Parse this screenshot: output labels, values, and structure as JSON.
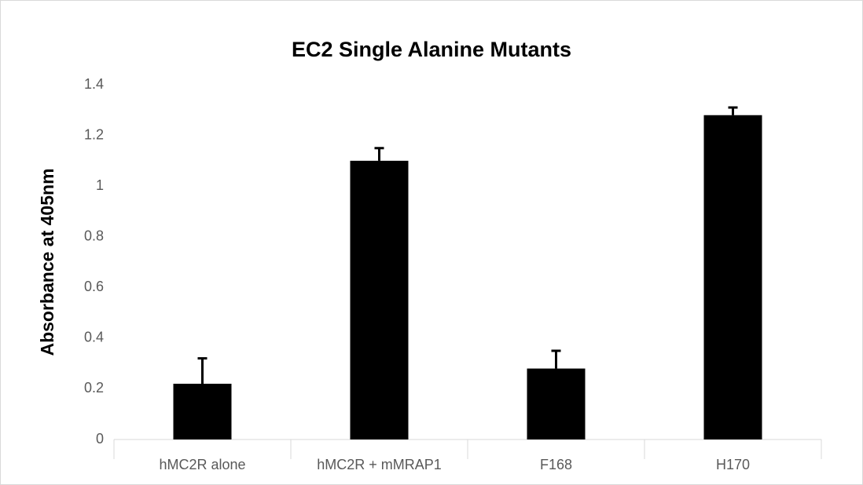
{
  "chart_data": {
    "type": "bar",
    "title": "EC2 Single Alanine Mutants",
    "y_label": "Absorbance at 405nm",
    "categories": [
      "hMC2R alone",
      "hMC2R + mMRAP1",
      "F168",
      "H170"
    ],
    "values": [
      0.22,
      1.1,
      0.28,
      1.28
    ],
    "errors": [
      0.1,
      0.05,
      0.07,
      0.03
    ],
    "color": "#000000",
    "ylim": [
      0,
      1.4
    ],
    "yticks": [
      0,
      0.2,
      0.4,
      0.6,
      0.8,
      1,
      1.2,
      1.4
    ],
    "grid": false
  }
}
